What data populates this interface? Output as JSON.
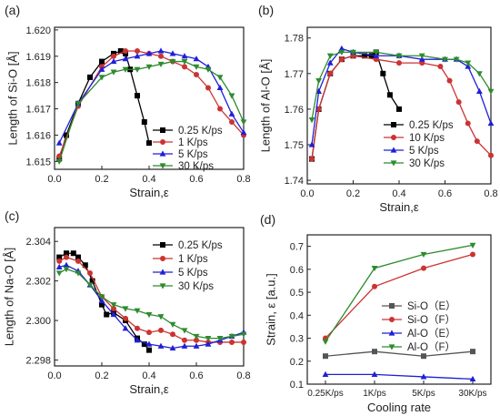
{
  "chart_data": [
    {
      "panel_label": "(a)",
      "type": "line",
      "xlabel": "Strain,ε",
      "ylabel": "Length of Si-O [Å]",
      "xlim": [
        0,
        0.8
      ],
      "ylim": [
        1.6147,
        1.6201
      ],
      "xticks": [
        "0.0",
        "0.2",
        "0.4",
        "0.6",
        "0.8"
      ],
      "yticks": [
        "1.615",
        "1.616",
        "1.617",
        "1.618",
        "1.619",
        "1.620"
      ],
      "ytick_values": [
        1.615,
        1.616,
        1.617,
        1.618,
        1.619,
        1.62
      ],
      "legend_position": "lower-right",
      "series": [
        {
          "name": "0.25 K/ps",
          "color": "#000000",
          "marker": "square",
          "x": [
            0.02,
            0.05,
            0.1,
            0.15,
            0.2,
            0.25,
            0.28,
            0.3,
            0.32,
            0.35,
            0.38,
            0.4
          ],
          "y": [
            1.6151,
            1.616,
            1.6172,
            1.6182,
            1.6188,
            1.6191,
            1.6192,
            1.6191,
            1.6185,
            1.6175,
            1.6165,
            1.6157
          ]
        },
        {
          "name": "1 K/ps",
          "color": "#cc3333",
          "marker": "circle",
          "x": [
            0.02,
            0.1,
            0.2,
            0.25,
            0.3,
            0.35,
            0.4,
            0.45,
            0.5,
            0.55,
            0.6,
            0.65,
            0.7,
            0.75,
            0.8
          ],
          "y": [
            1.6152,
            1.6171,
            1.6186,
            1.619,
            1.6192,
            1.6192,
            1.6191,
            1.619,
            1.6188,
            1.6186,
            1.6183,
            1.6178,
            1.617,
            1.6165,
            1.616
          ]
        },
        {
          "name": "5 K/ps",
          "color": "#1f1fd6",
          "marker": "triangle-up",
          "x": [
            0.02,
            0.1,
            0.2,
            0.25,
            0.3,
            0.35,
            0.4,
            0.45,
            0.5,
            0.55,
            0.6,
            0.65,
            0.7,
            0.75,
            0.8
          ],
          "y": [
            1.6157,
            1.6172,
            1.6185,
            1.6188,
            1.6189,
            1.619,
            1.6191,
            1.6192,
            1.6191,
            1.619,
            1.6189,
            1.6186,
            1.6178,
            1.6168,
            1.6161
          ]
        },
        {
          "name": "30 K/ps",
          "color": "#2e8b2e",
          "marker": "triangle-down",
          "x": [
            0.02,
            0.1,
            0.2,
            0.25,
            0.3,
            0.35,
            0.4,
            0.45,
            0.5,
            0.55,
            0.6,
            0.65,
            0.7,
            0.75,
            0.8
          ],
          "y": [
            1.615,
            1.6172,
            1.6182,
            1.6184,
            1.6185,
            1.6185,
            1.6186,
            1.6187,
            1.6188,
            1.6188,
            1.6186,
            1.6185,
            1.6182,
            1.6175,
            1.6165
          ]
        }
      ]
    },
    {
      "panel_label": "(b)",
      "type": "line",
      "xlabel": "Strain,ε",
      "ylabel": "Length of Al-O [Å]",
      "xlim": [
        0,
        0.8
      ],
      "ylim": [
        1.739,
        1.783
      ],
      "xticks": [
        "0.0",
        "0.2",
        "0.4",
        "0.6",
        "0.8"
      ],
      "yticks": [
        "1.74",
        "1.75",
        "1.76",
        "1.77",
        "1.78"
      ],
      "ytick_values": [
        1.74,
        1.75,
        1.76,
        1.77,
        1.78
      ],
      "legend_position": "lower-right",
      "series": [
        {
          "name": "0.25 K/ps",
          "color": "#000000",
          "marker": "square",
          "x": [
            0.02,
            0.05,
            0.1,
            0.15,
            0.2,
            0.25,
            0.28,
            0.3,
            0.33,
            0.36,
            0.4
          ],
          "y": [
            1.746,
            1.76,
            1.77,
            1.774,
            1.775,
            1.775,
            1.775,
            1.776,
            1.77,
            1.764,
            1.76
          ]
        },
        {
          "name": "10 K/ps",
          "color": "#cc3333",
          "marker": "circle",
          "x": [
            0.02,
            0.05,
            0.1,
            0.15,
            0.2,
            0.3,
            0.4,
            0.5,
            0.58,
            0.62,
            0.66,
            0.7,
            0.74,
            0.8
          ],
          "y": [
            1.746,
            1.76,
            1.77,
            1.774,
            1.775,
            1.774,
            1.773,
            1.773,
            1.772,
            1.768,
            1.762,
            1.756,
            1.751,
            1.747
          ]
        },
        {
          "name": "5 K/ps",
          "color": "#1f1fd6",
          "marker": "triangle-up",
          "x": [
            0.02,
            0.05,
            0.1,
            0.15,
            0.2,
            0.3,
            0.4,
            0.5,
            0.6,
            0.65,
            0.7,
            0.75,
            0.8
          ],
          "y": [
            1.75,
            1.765,
            1.773,
            1.777,
            1.776,
            1.775,
            1.775,
            1.774,
            1.774,
            1.774,
            1.772,
            1.765,
            1.756
          ]
        },
        {
          "name": "30 K/ps",
          "color": "#2e8b2e",
          "marker": "triangle-down",
          "x": [
            0.02,
            0.05,
            0.1,
            0.15,
            0.2,
            0.3,
            0.4,
            0.5,
            0.6,
            0.65,
            0.7,
            0.75,
            0.8
          ],
          "y": [
            1.757,
            1.768,
            1.775,
            1.776,
            1.776,
            1.776,
            1.775,
            1.775,
            1.774,
            1.774,
            1.773,
            1.77,
            1.765
          ]
        }
      ]
    },
    {
      "panel_label": "(c)",
      "type": "line",
      "xlabel": "Strain,ε",
      "ylabel": "Length of Na-O [Å]",
      "xlim": [
        0,
        0.8
      ],
      "ylim": [
        2.2977,
        2.3047
      ],
      "xticks": [
        "0.0",
        "0.2",
        "0.4",
        "0.6",
        "0.8"
      ],
      "yticks": [
        "2.298",
        "2.300",
        "2.302",
        "2.304"
      ],
      "ytick_values": [
        2.298,
        2.3,
        2.302,
        2.304
      ],
      "legend_position": "upper-right",
      "series": [
        {
          "name": "0.25 K/ps",
          "color": "#000000",
          "marker": "square",
          "x": [
            0.02,
            0.05,
            0.08,
            0.1,
            0.13,
            0.16,
            0.2,
            0.22,
            0.25,
            0.3,
            0.35,
            0.38,
            0.4
          ],
          "y": [
            2.3032,
            2.3034,
            2.3034,
            2.3032,
            2.3028,
            2.302,
            2.3008,
            2.3003,
            2.3004,
            2.3,
            2.2991,
            2.2988,
            2.2985
          ]
        },
        {
          "name": "1 K/ps",
          "color": "#cc3333",
          "marker": "circle",
          "x": [
            0.02,
            0.05,
            0.1,
            0.15,
            0.2,
            0.25,
            0.3,
            0.35,
            0.4,
            0.45,
            0.5,
            0.55,
            0.6,
            0.65,
            0.7,
            0.75,
            0.8
          ],
          "y": [
            2.303,
            2.3032,
            2.303,
            2.3024,
            2.3012,
            2.3006,
            2.3001,
            2.2996,
            2.2994,
            2.2995,
            2.2993,
            2.299,
            2.299,
            2.2989,
            2.2989,
            2.2989,
            2.2989
          ]
        },
        {
          "name": "5 K/ps",
          "color": "#1f1fd6",
          "marker": "triangle-up",
          "x": [
            0.02,
            0.05,
            0.1,
            0.15,
            0.2,
            0.25,
            0.3,
            0.35,
            0.4,
            0.45,
            0.5,
            0.55,
            0.6,
            0.65,
            0.7,
            0.75,
            0.8
          ],
          "y": [
            2.3027,
            2.3028,
            2.3025,
            2.3018,
            2.301,
            2.3003,
            2.2996,
            2.299,
            2.2988,
            2.2987,
            2.2986,
            2.2987,
            2.2987,
            2.2988,
            2.299,
            2.2992,
            2.2994
          ]
        },
        {
          "name": "30 K/ps",
          "color": "#2e8b2e",
          "marker": "triangle-down",
          "x": [
            0.02,
            0.05,
            0.1,
            0.15,
            0.2,
            0.25,
            0.3,
            0.35,
            0.4,
            0.45,
            0.5,
            0.55,
            0.6,
            0.65,
            0.7,
            0.75,
            0.8
          ],
          "y": [
            2.3024,
            2.3026,
            2.3024,
            2.3018,
            2.3012,
            2.3008,
            2.3006,
            2.3005,
            2.3003,
            2.3002,
            2.2998,
            2.2995,
            2.2992,
            2.2991,
            2.2991,
            2.2992,
            2.2993
          ]
        }
      ]
    },
    {
      "panel_label": "(d)",
      "type": "line",
      "xlabel": "Cooling rate",
      "ylabel": "Strain, ε [a.u.]",
      "categories": [
        "0.25K/ps",
        "1K/ps",
        "5K/ps",
        "30K/ps"
      ],
      "ylim": [
        0.1,
        0.75
      ],
      "yticks": [
        "0.1",
        "0.2",
        "0.3",
        "0.4",
        "0.5",
        "0.6",
        "0.7"
      ],
      "ytick_values": [
        0.1,
        0.2,
        0.3,
        0.4,
        0.5,
        0.6,
        0.7
      ],
      "legend_position": "middle-right",
      "series": [
        {
          "name": "Si-O（E）",
          "color": "#555555",
          "marker": "square",
          "values": [
            0.222,
            0.242,
            0.222,
            0.242
          ]
        },
        {
          "name": "Si-O（F）",
          "color": "#cc3333",
          "marker": "circle",
          "values": [
            0.3,
            0.525,
            0.605,
            0.665
          ]
        },
        {
          "name": "Al-O（E）",
          "color": "#1f1fd6",
          "marker": "triangle-up",
          "values": [
            0.142,
            0.142,
            0.132,
            0.122
          ]
        },
        {
          "name": "Al-O（F）",
          "color": "#2e8b2e",
          "marker": "triangle-down",
          "values": [
            0.285,
            0.605,
            0.665,
            0.705
          ]
        }
      ]
    }
  ]
}
